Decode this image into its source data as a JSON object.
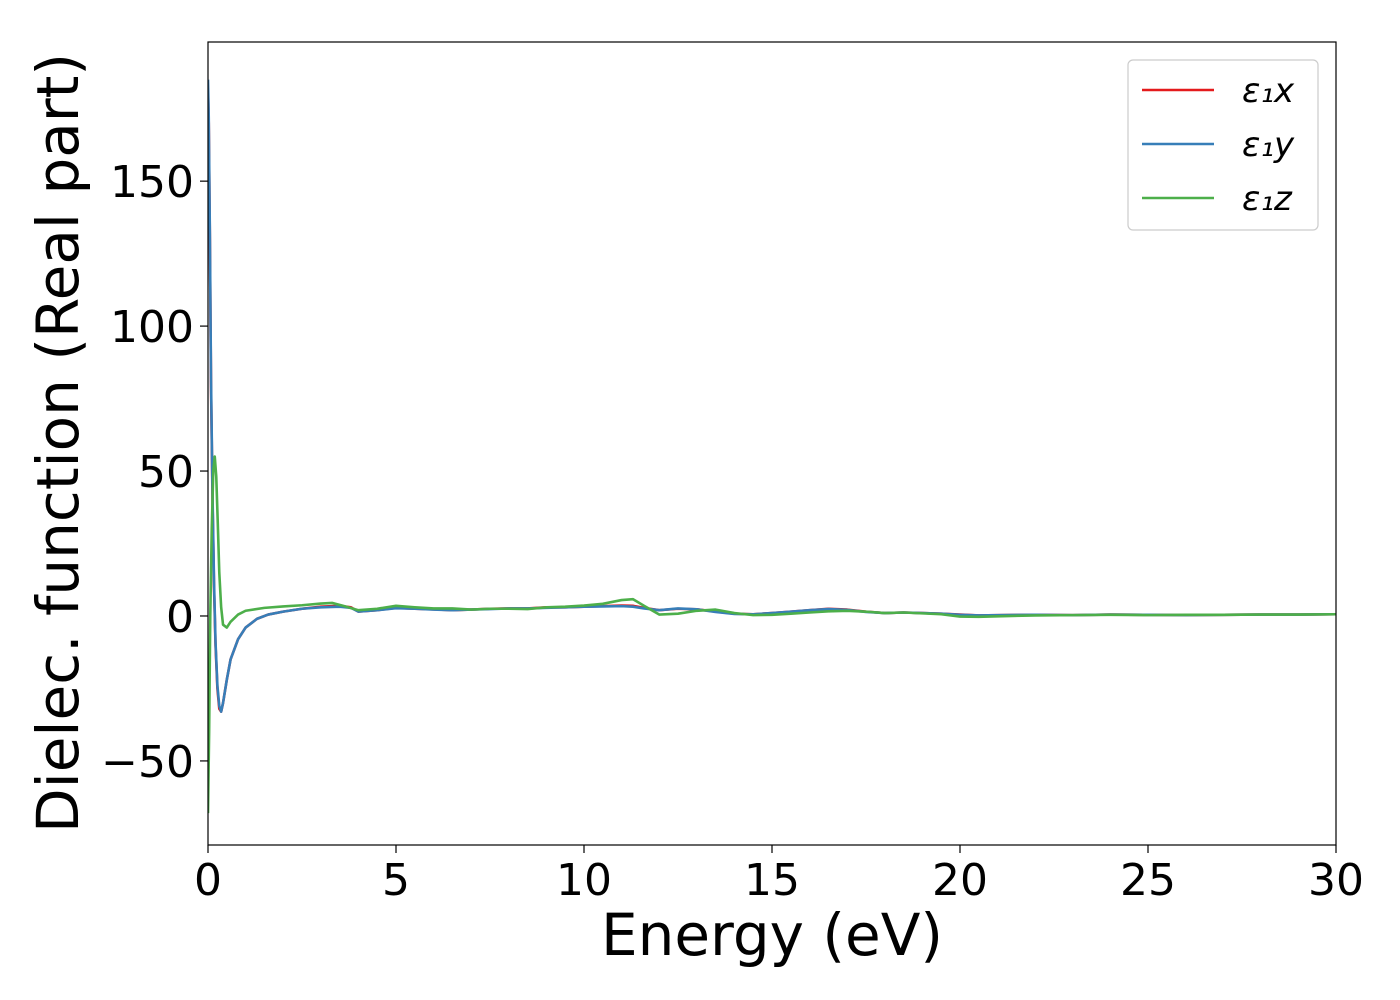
{
  "chart_data": {
    "type": "line",
    "title": "",
    "xlabel": "Energy (eV)",
    "ylabel": "Dielec. function (Real part)",
    "xlim": [
      0,
      30
    ],
    "ylim": [
      -79,
      198
    ],
    "xticks": [
      0,
      5,
      10,
      15,
      20,
      25,
      30
    ],
    "xtick_labels": [
      "0",
      "5",
      "10",
      "15",
      "20",
      "25",
      "30"
    ],
    "yticks": [
      -50,
      0,
      50,
      100,
      150
    ],
    "ytick_labels": [
      "−50",
      "0",
      "50",
      "100",
      "150"
    ],
    "grid": false,
    "legend_position": "top-right",
    "series": [
      {
        "name": "ε₁x",
        "color": "#e41a1c",
        "x": [
          0.0,
          0.02,
          0.05,
          0.08,
          0.12,
          0.16,
          0.2,
          0.25,
          0.3,
          0.35,
          0.4,
          0.5,
          0.6,
          0.8,
          1.0,
          1.3,
          1.6,
          2.0,
          2.5,
          3.0,
          3.5,
          3.8,
          4.0,
          4.5,
          5.0,
          5.5,
          6.0,
          6.5,
          7.0,
          7.5,
          8.0,
          8.5,
          9.0,
          9.5,
          10.0,
          10.5,
          11.0,
          11.3,
          11.6,
          12.0,
          12.5,
          13.0,
          13.5,
          14.0,
          14.5,
          15.0,
          15.5,
          16.0,
          16.5,
          17.0,
          17.5,
          18.0,
          18.5,
          19.0,
          19.5,
          20.0,
          20.5,
          21.0,
          22.0,
          23.0,
          24.0,
          25.0,
          26.0,
          27.0,
          28.0,
          29.0,
          30.0
        ],
        "values": [
          182,
          170,
          130,
          80,
          40,
          10,
          -10,
          -25,
          -32,
          -33,
          -30,
          -22,
          -15,
          -8,
          -4,
          -1,
          0.5,
          1.5,
          2.5,
          3.2,
          3.5,
          3.0,
          1.5,
          2.0,
          2.8,
          2.5,
          2.3,
          2.0,
          2.2,
          2.5,
          2.6,
          2.6,
          3.0,
          3.0,
          3.2,
          3.4,
          3.6,
          3.5,
          2.8,
          2.0,
          2.5,
          2.3,
          1.5,
          0.8,
          0.6,
          1.0,
          1.5,
          2.0,
          2.5,
          2.2,
          1.5,
          1.0,
          1.2,
          1.0,
          0.8,
          0.5,
          0.2,
          0.3,
          0.4,
          0.3,
          0.5,
          0.4,
          0.3,
          0.4,
          0.5,
          0.5,
          0.6
        ]
      },
      {
        "name": "ε₁y",
        "color": "#377eb8",
        "x": [
          0.0,
          0.02,
          0.05,
          0.08,
          0.12,
          0.16,
          0.2,
          0.25,
          0.3,
          0.35,
          0.4,
          0.5,
          0.6,
          0.8,
          1.0,
          1.3,
          1.6,
          2.0,
          2.5,
          3.0,
          3.5,
          3.8,
          4.0,
          4.5,
          5.0,
          5.5,
          6.0,
          6.5,
          7.0,
          7.5,
          8.0,
          8.5,
          9.0,
          9.5,
          10.0,
          10.5,
          11.0,
          11.3,
          11.6,
          12.0,
          12.5,
          13.0,
          13.5,
          14.0,
          14.5,
          15.0,
          15.5,
          16.0,
          16.5,
          17.0,
          17.5,
          18.0,
          18.5,
          19.0,
          19.5,
          20.0,
          20.5,
          21.0,
          22.0,
          23.0,
          24.0,
          25.0,
          26.0,
          27.0,
          28.0,
          29.0,
          30.0
        ],
        "values": [
          185,
          172,
          132,
          82,
          42,
          12,
          -9,
          -24,
          -31,
          -33,
          -30,
          -22,
          -15,
          -8,
          -4,
          -1,
          0.5,
          1.5,
          2.5,
          3.0,
          3.2,
          2.8,
          1.5,
          2.0,
          2.7,
          2.5,
          2.2,
          2.0,
          2.2,
          2.4,
          2.6,
          2.6,
          2.8,
          3.0,
          3.2,
          3.3,
          3.4,
          3.2,
          2.6,
          2.0,
          2.6,
          2.3,
          1.4,
          0.7,
          0.6,
          1.0,
          1.5,
          2.0,
          2.4,
          2.1,
          1.4,
          1.0,
          1.2,
          1.0,
          0.8,
          0.4,
          0.2,
          0.3,
          0.4,
          0.3,
          0.5,
          0.4,
          0.3,
          0.4,
          0.5,
          0.5,
          0.6
        ]
      },
      {
        "name": "ε₁z",
        "color": "#4daf4a",
        "x": [
          0.0,
          0.03,
          0.06,
          0.1,
          0.14,
          0.18,
          0.22,
          0.26,
          0.3,
          0.35,
          0.4,
          0.5,
          0.6,
          0.8,
          1.0,
          1.5,
          2.0,
          2.5,
          3.0,
          3.3,
          3.6,
          4.0,
          4.5,
          5.0,
          5.5,
          6.0,
          6.5,
          7.0,
          7.5,
          8.0,
          8.5,
          9.0,
          9.5,
          10.0,
          10.5,
          11.0,
          11.3,
          11.6,
          12.0,
          12.5,
          13.0,
          13.5,
          14.0,
          14.5,
          15.0,
          15.5,
          16.0,
          16.5,
          17.0,
          17.5,
          18.0,
          18.5,
          19.0,
          19.5,
          20.0,
          20.5,
          21.0,
          22.0,
          23.0,
          24.0,
          25.0,
          26.0,
          27.0,
          28.0,
          29.0,
          30.0
        ],
        "values": [
          -68,
          -40,
          0,
          30,
          50,
          55,
          48,
          32,
          15,
          3,
          -3,
          -4,
          -2,
          0.5,
          1.8,
          2.8,
          3.3,
          3.7,
          4.3,
          4.5,
          3.5,
          2.0,
          2.5,
          3.5,
          3.0,
          2.6,
          2.6,
          2.2,
          2.5,
          2.5,
          2.4,
          3.0,
          3.2,
          3.6,
          4.2,
          5.5,
          5.8,
          3.5,
          0.5,
          0.8,
          1.8,
          2.2,
          1.0,
          0.3,
          0.4,
          0.8,
          1.2,
          1.6,
          1.8,
          1.5,
          1.0,
          1.2,
          0.9,
          0.6,
          -0.2,
          -0.3,
          -0.1,
          0.2,
          0.3,
          0.4,
          0.3,
          0.4,
          0.4,
          0.5,
          0.5,
          0.6
        ]
      }
    ]
  }
}
